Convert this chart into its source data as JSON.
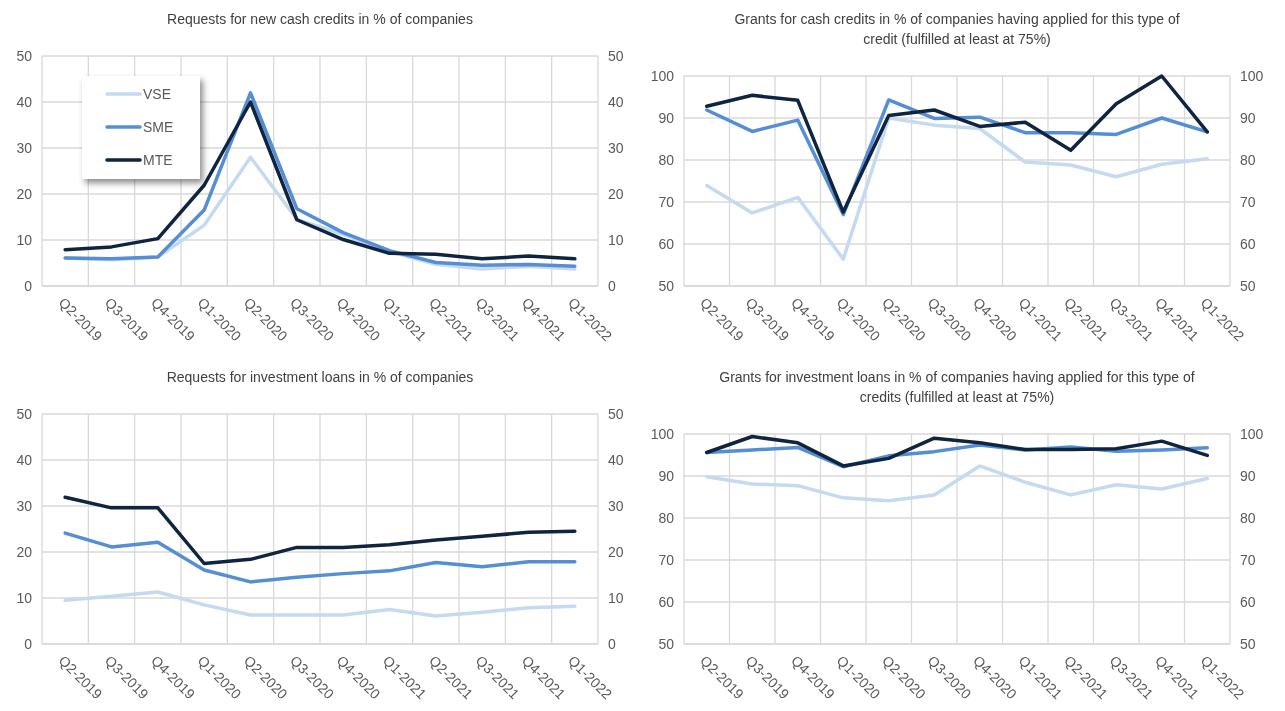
{
  "chart_data": [
    {
      "type": "line",
      "title": "Requests for new cash credits in % of companies",
      "categories": [
        "Q2-2019",
        "Q3-2019",
        "Q4-2019",
        "Q1-2020",
        "Q2-2020",
        "Q3-2020",
        "Q4-2020",
        "Q1-2021",
        "Q2-2021",
        "Q3-2021",
        "Q4-2021",
        "Q1-2022"
      ],
      "ylim": [
        0,
        50
      ],
      "yticks": [
        0,
        10,
        20,
        30,
        40,
        50
      ],
      "y2lim": [
        0,
        50
      ],
      "y2ticks": [
        0,
        10,
        20,
        30,
        40,
        50
      ],
      "grid": true,
      "legend": "top left",
      "series": [
        {
          "name": "VSE",
          "color": "#c5d9f1",
          "values": [
            6.1,
            5.7,
            6.3,
            13.2,
            28,
            14.5,
            11.2,
            7.5,
            4.7,
            3.7,
            4.3,
            3.7
          ]
        },
        {
          "name": "SME",
          "color": "#558ed5",
          "values": [
            6.1,
            5.9,
            6.3,
            16.5,
            42,
            16.8,
            11.6,
            7.7,
            5.1,
            4.5,
            4.7,
            4.3
          ]
        },
        {
          "name": "MTE",
          "color": "#0f243e",
          "values": [
            7.9,
            8.5,
            10.3,
            21.9,
            40,
            14.4,
            10.1,
            7.1,
            6.9,
            5.9,
            6.5,
            5.9
          ]
        }
      ]
    },
    {
      "type": "line",
      "title": "Grants for cash credits in % of companies having applied for this type of credit (fulfilled at least at 75%)",
      "categories": [
        "Q2-2019",
        "Q3-2019",
        "Q4-2019",
        "Q1-2020",
        "Q2-2020",
        "Q3-2020",
        "Q4-2020",
        "Q1-2021",
        "Q2-2021",
        "Q3-2021",
        "Q4-2021",
        "Q1-2022"
      ],
      "ylim": [
        50,
        100
      ],
      "yticks": [
        50,
        60,
        70,
        80,
        90,
        100
      ],
      "y2lim": [
        50,
        100
      ],
      "y2ticks": [
        50,
        60,
        70,
        80,
        90,
        100
      ],
      "grid": true,
      "series": [
        {
          "color": "#c5d9f1",
          "values": [
            73.9,
            67.4,
            71.1,
            56.4,
            90,
            88.3,
            87.5,
            79.5,
            78.8,
            76,
            79,
            80.3
          ]
        },
        {
          "color": "#558ed5",
          "values": [
            91.9,
            86.8,
            89.5,
            67,
            94.3,
            89.9,
            90.2,
            86.5,
            86.5,
            86.1,
            90,
            86.7
          ]
        },
        {
          "color": "#0f243e",
          "values": [
            92.8,
            95.4,
            94.2,
            67.6,
            90.6,
            91.9,
            88,
            89,
            82.3,
            93.4,
            100,
            86.7
          ]
        }
      ]
    },
    {
      "type": "line",
      "title": "Requests for investment loans in % of companies",
      "categories": [
        "Q2-2019",
        "Q3-2019",
        "Q4-2019",
        "Q1-2020",
        "Q2-2020",
        "Q3-2020",
        "Q4-2020",
        "Q1-2021",
        "Q2-2021",
        "Q3-2021",
        "Q4-2021",
        "Q1-2022"
      ],
      "ylim": [
        0,
        50
      ],
      "yticks": [
        0,
        10,
        20,
        30,
        40,
        50
      ],
      "y2lim": [
        0,
        50
      ],
      "y2ticks": [
        0,
        10,
        20,
        30,
        40,
        50
      ],
      "grid": true,
      "series": [
        {
          "color": "#c5d9f1",
          "values": [
            9.5,
            10.4,
            11.3,
            8.5,
            6.3,
            6.3,
            6.3,
            7.5,
            6.1,
            6.9,
            7.9,
            8.2
          ]
        },
        {
          "color": "#558ed5",
          "values": [
            24.1,
            21.1,
            22.1,
            16.1,
            13.5,
            14.5,
            15.3,
            15.9,
            17.7,
            16.8,
            17.9,
            17.9
          ]
        },
        {
          "color": "#0f243e",
          "values": [
            31.9,
            29.6,
            29.6,
            17.5,
            18.4,
            21,
            21,
            21.6,
            22.6,
            23.4,
            24.3,
            24.5
          ]
        }
      ]
    },
    {
      "type": "line",
      "title": "Grants for investment loans in % of companies having applied for this type of credits (fulfilled at least at 75%)",
      "categories": [
        "Q2-2019",
        "Q3-2019",
        "Q4-2019",
        "Q1-2020",
        "Q2-2020",
        "Q3-2020",
        "Q4-2020",
        "Q1-2021",
        "Q2-2021",
        "Q3-2021",
        "Q4-2021",
        "Q1-2022"
      ],
      "ylim": [
        50,
        100
      ],
      "yticks": [
        50,
        60,
        70,
        80,
        90,
        100
      ],
      "y2lim": [
        50,
        100
      ],
      "y2ticks": [
        50,
        60,
        70,
        80,
        90,
        100
      ],
      "grid": true,
      "series": [
        {
          "color": "#c5d9f1",
          "values": [
            89.8,
            88.1,
            87.7,
            84.8,
            84.1,
            85.5,
            92.4,
            88.5,
            85.5,
            87.9,
            86.9,
            89.4
          ]
        },
        {
          "color": "#558ed5",
          "values": [
            95.6,
            96.2,
            96.8,
            92.2,
            94.8,
            95.8,
            97.4,
            96.2,
            96.9,
            95.9,
            96.2,
            96.7
          ]
        },
        {
          "color": "#0f243e",
          "values": [
            95.6,
            99.4,
            97.9,
            92.4,
            94.2,
            99,
            97.9,
            96.3,
            96.3,
            96.5,
            98.3,
            94.9
          ]
        }
      ]
    }
  ]
}
